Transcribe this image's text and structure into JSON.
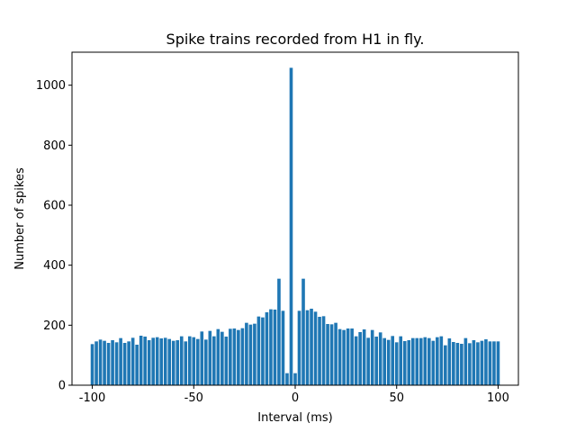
{
  "chart_data": {
    "type": "bar",
    "title": "Spike trains recorded from H1 in fly.",
    "xlabel": "Interval (ms)",
    "ylabel": "Number of spikes",
    "xlim": [
      -110,
      110
    ],
    "ylim": [
      0,
      1110
    ],
    "xticks": [
      -100,
      -50,
      0,
      50,
      100
    ],
    "yticks": [
      0,
      200,
      400,
      600,
      800,
      1000
    ],
    "xtick_labels": [
      "-100",
      "-50",
      "0",
      "50",
      "100"
    ],
    "ytick_labels": [
      "0",
      "200",
      "400",
      "600",
      "800",
      "1000"
    ],
    "bar_width": 1.6,
    "bar_color": "#1f77b4",
    "grid": false,
    "x": [
      -100,
      -98,
      -96,
      -94,
      -92,
      -90,
      -88,
      -86,
      -84,
      -82,
      -80,
      -78,
      -76,
      -74,
      -72,
      -70,
      -68,
      -66,
      -64,
      -62,
      -60,
      -58,
      -56,
      -54,
      -52,
      -50,
      -48,
      -46,
      -44,
      -42,
      -40,
      -38,
      -36,
      -34,
      -32,
      -30,
      -28,
      -26,
      -24,
      -22,
      -20,
      -18,
      -16,
      -14,
      -12,
      -10,
      -8,
      -6,
      -4,
      -2,
      0,
      2,
      4,
      6,
      8,
      10,
      12,
      14,
      16,
      18,
      20,
      22,
      24,
      26,
      28,
      30,
      32,
      34,
      36,
      38,
      40,
      42,
      44,
      46,
      48,
      50,
      52,
      54,
      56,
      58,
      60,
      62,
      64,
      66,
      68,
      70,
      72,
      74,
      76,
      78,
      80,
      82,
      84,
      86,
      88,
      90,
      92,
      94,
      96,
      98,
      100
    ],
    "values": [
      137,
      146,
      152,
      148,
      141,
      150,
      143,
      157,
      141,
      146,
      158,
      135,
      165,
      162,
      150,
      158,
      160,
      156,
      158,
      154,
      148,
      150,
      163,
      146,
      163,
      160,
      154,
      179,
      152,
      181,
      163,
      187,
      178,
      162,
      188,
      189,
      184,
      190,
      208,
      202,
      205,
      229,
      226,
      243,
      253,
      252,
      355,
      248,
      40,
      1058,
      40,
      248,
      355,
      250,
      255,
      245,
      228,
      230,
      204,
      203,
      208,
      187,
      184,
      189,
      189,
      163,
      177,
      186,
      158,
      184,
      162,
      176,
      157,
      151,
      164,
      143,
      163,
      147,
      150,
      157,
      157,
      157,
      160,
      157,
      148,
      160,
      163,
      133,
      156,
      144,
      141,
      138,
      157,
      140,
      150,
      143,
      148,
      153,
      146,
      146,
      146
    ]
  }
}
